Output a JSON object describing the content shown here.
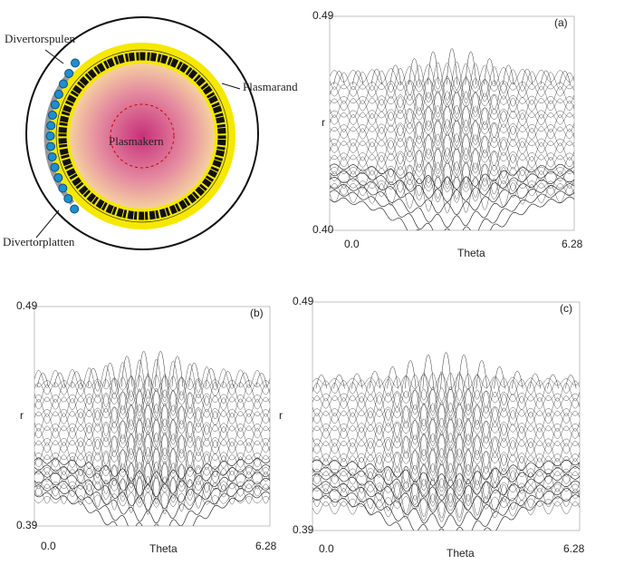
{
  "diagram": {
    "coils": "Divertorspulen",
    "edge": "Plasmarand",
    "core": "Plasmakern",
    "plates": "Divertorplatten"
  },
  "panels": [
    {
      "label": "(a)",
      "y_top": "0.49",
      "y_bottom": "0.40",
      "y_axis": "r",
      "x_left": "0.0",
      "x_right": "6.28",
      "x_axis": "Theta"
    },
    {
      "label": "(b)",
      "y_top": "0.49",
      "y_bottom": "0.39",
      "y_axis": "r",
      "x_left": "0.0",
      "x_right": "6.28",
      "x_axis": "Theta"
    },
    {
      "label": "(c)",
      "y_top": "0.49",
      "y_bottom": "0.39",
      "y_axis": "r",
      "x_left": "0.0",
      "x_right": "6.28",
      "x_axis": "Theta"
    }
  ]
}
